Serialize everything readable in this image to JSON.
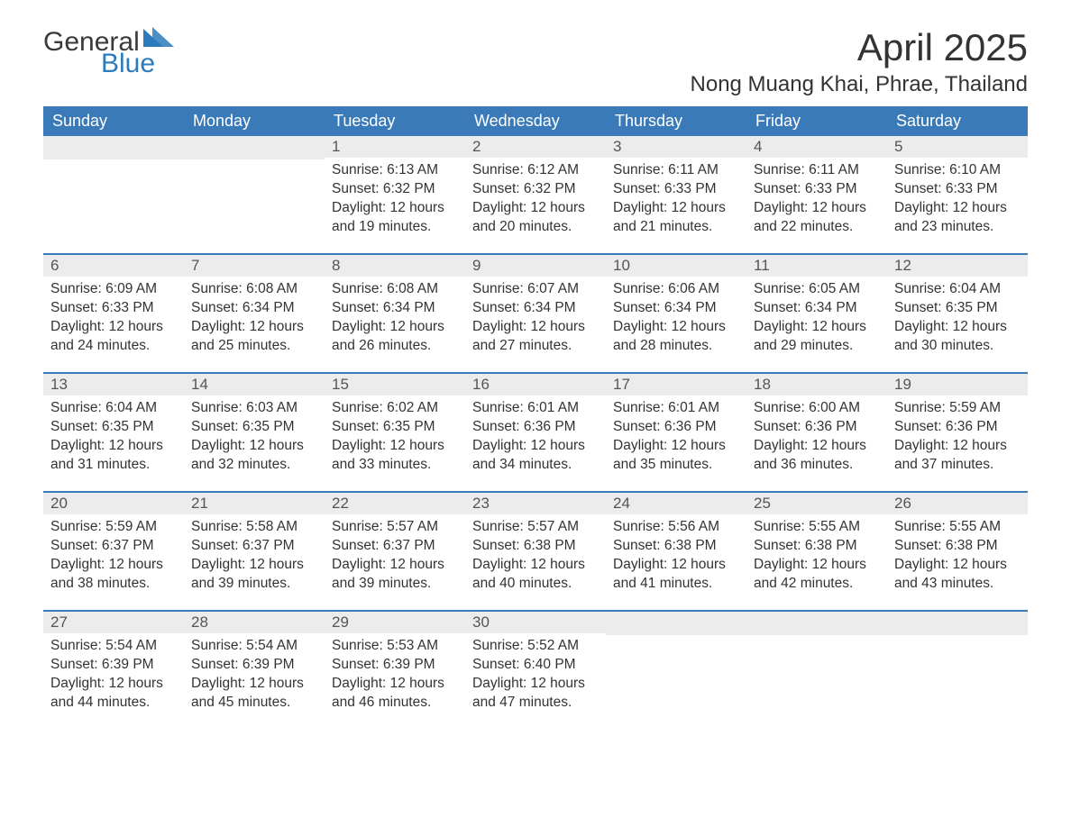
{
  "logo": {
    "text_general": "General",
    "text_blue": "Blue",
    "flag_color": "#2b7bbd"
  },
  "title": {
    "month": "April 2025",
    "location": "Nong Muang Khai, Phrae, Thailand"
  },
  "colors": {
    "header_bg": "#3a7ab8",
    "header_text": "#ffffff",
    "daynum_bg": "#ececec",
    "border": "#3a7ab8",
    "body_text": "#333333",
    "logo_general": "#3a3a3a",
    "logo_blue": "#2b7bbd"
  },
  "day_headers": [
    "Sunday",
    "Monday",
    "Tuesday",
    "Wednesday",
    "Thursday",
    "Friday",
    "Saturday"
  ],
  "weeks": [
    [
      {
        "n": "",
        "sunrise": "",
        "sunset": "",
        "daylight1": "",
        "daylight2": ""
      },
      {
        "n": "",
        "sunrise": "",
        "sunset": "",
        "daylight1": "",
        "daylight2": ""
      },
      {
        "n": "1",
        "sunrise": "Sunrise: 6:13 AM",
        "sunset": "Sunset: 6:32 PM",
        "daylight1": "Daylight: 12 hours",
        "daylight2": "and 19 minutes."
      },
      {
        "n": "2",
        "sunrise": "Sunrise: 6:12 AM",
        "sunset": "Sunset: 6:32 PM",
        "daylight1": "Daylight: 12 hours",
        "daylight2": "and 20 minutes."
      },
      {
        "n": "3",
        "sunrise": "Sunrise: 6:11 AM",
        "sunset": "Sunset: 6:33 PM",
        "daylight1": "Daylight: 12 hours",
        "daylight2": "and 21 minutes."
      },
      {
        "n": "4",
        "sunrise": "Sunrise: 6:11 AM",
        "sunset": "Sunset: 6:33 PM",
        "daylight1": "Daylight: 12 hours",
        "daylight2": "and 22 minutes."
      },
      {
        "n": "5",
        "sunrise": "Sunrise: 6:10 AM",
        "sunset": "Sunset: 6:33 PM",
        "daylight1": "Daylight: 12 hours",
        "daylight2": "and 23 minutes."
      }
    ],
    [
      {
        "n": "6",
        "sunrise": "Sunrise: 6:09 AM",
        "sunset": "Sunset: 6:33 PM",
        "daylight1": "Daylight: 12 hours",
        "daylight2": "and 24 minutes."
      },
      {
        "n": "7",
        "sunrise": "Sunrise: 6:08 AM",
        "sunset": "Sunset: 6:34 PM",
        "daylight1": "Daylight: 12 hours",
        "daylight2": "and 25 minutes."
      },
      {
        "n": "8",
        "sunrise": "Sunrise: 6:08 AM",
        "sunset": "Sunset: 6:34 PM",
        "daylight1": "Daylight: 12 hours",
        "daylight2": "and 26 minutes."
      },
      {
        "n": "9",
        "sunrise": "Sunrise: 6:07 AM",
        "sunset": "Sunset: 6:34 PM",
        "daylight1": "Daylight: 12 hours",
        "daylight2": "and 27 minutes."
      },
      {
        "n": "10",
        "sunrise": "Sunrise: 6:06 AM",
        "sunset": "Sunset: 6:34 PM",
        "daylight1": "Daylight: 12 hours",
        "daylight2": "and 28 minutes."
      },
      {
        "n": "11",
        "sunrise": "Sunrise: 6:05 AM",
        "sunset": "Sunset: 6:34 PM",
        "daylight1": "Daylight: 12 hours",
        "daylight2": "and 29 minutes."
      },
      {
        "n": "12",
        "sunrise": "Sunrise: 6:04 AM",
        "sunset": "Sunset: 6:35 PM",
        "daylight1": "Daylight: 12 hours",
        "daylight2": "and 30 minutes."
      }
    ],
    [
      {
        "n": "13",
        "sunrise": "Sunrise: 6:04 AM",
        "sunset": "Sunset: 6:35 PM",
        "daylight1": "Daylight: 12 hours",
        "daylight2": "and 31 minutes."
      },
      {
        "n": "14",
        "sunrise": "Sunrise: 6:03 AM",
        "sunset": "Sunset: 6:35 PM",
        "daylight1": "Daylight: 12 hours",
        "daylight2": "and 32 minutes."
      },
      {
        "n": "15",
        "sunrise": "Sunrise: 6:02 AM",
        "sunset": "Sunset: 6:35 PM",
        "daylight1": "Daylight: 12 hours",
        "daylight2": "and 33 minutes."
      },
      {
        "n": "16",
        "sunrise": "Sunrise: 6:01 AM",
        "sunset": "Sunset: 6:36 PM",
        "daylight1": "Daylight: 12 hours",
        "daylight2": "and 34 minutes."
      },
      {
        "n": "17",
        "sunrise": "Sunrise: 6:01 AM",
        "sunset": "Sunset: 6:36 PM",
        "daylight1": "Daylight: 12 hours",
        "daylight2": "and 35 minutes."
      },
      {
        "n": "18",
        "sunrise": "Sunrise: 6:00 AM",
        "sunset": "Sunset: 6:36 PM",
        "daylight1": "Daylight: 12 hours",
        "daylight2": "and 36 minutes."
      },
      {
        "n": "19",
        "sunrise": "Sunrise: 5:59 AM",
        "sunset": "Sunset: 6:36 PM",
        "daylight1": "Daylight: 12 hours",
        "daylight2": "and 37 minutes."
      }
    ],
    [
      {
        "n": "20",
        "sunrise": "Sunrise: 5:59 AM",
        "sunset": "Sunset: 6:37 PM",
        "daylight1": "Daylight: 12 hours",
        "daylight2": "and 38 minutes."
      },
      {
        "n": "21",
        "sunrise": "Sunrise: 5:58 AM",
        "sunset": "Sunset: 6:37 PM",
        "daylight1": "Daylight: 12 hours",
        "daylight2": "and 39 minutes."
      },
      {
        "n": "22",
        "sunrise": "Sunrise: 5:57 AM",
        "sunset": "Sunset: 6:37 PM",
        "daylight1": "Daylight: 12 hours",
        "daylight2": "and 39 minutes."
      },
      {
        "n": "23",
        "sunrise": "Sunrise: 5:57 AM",
        "sunset": "Sunset: 6:38 PM",
        "daylight1": "Daylight: 12 hours",
        "daylight2": "and 40 minutes."
      },
      {
        "n": "24",
        "sunrise": "Sunrise: 5:56 AM",
        "sunset": "Sunset: 6:38 PM",
        "daylight1": "Daylight: 12 hours",
        "daylight2": "and 41 minutes."
      },
      {
        "n": "25",
        "sunrise": "Sunrise: 5:55 AM",
        "sunset": "Sunset: 6:38 PM",
        "daylight1": "Daylight: 12 hours",
        "daylight2": "and 42 minutes."
      },
      {
        "n": "26",
        "sunrise": "Sunrise: 5:55 AM",
        "sunset": "Sunset: 6:38 PM",
        "daylight1": "Daylight: 12 hours",
        "daylight2": "and 43 minutes."
      }
    ],
    [
      {
        "n": "27",
        "sunrise": "Sunrise: 5:54 AM",
        "sunset": "Sunset: 6:39 PM",
        "daylight1": "Daylight: 12 hours",
        "daylight2": "and 44 minutes."
      },
      {
        "n": "28",
        "sunrise": "Sunrise: 5:54 AM",
        "sunset": "Sunset: 6:39 PM",
        "daylight1": "Daylight: 12 hours",
        "daylight2": "and 45 minutes."
      },
      {
        "n": "29",
        "sunrise": "Sunrise: 5:53 AM",
        "sunset": "Sunset: 6:39 PM",
        "daylight1": "Daylight: 12 hours",
        "daylight2": "and 46 minutes."
      },
      {
        "n": "30",
        "sunrise": "Sunrise: 5:52 AM",
        "sunset": "Sunset: 6:40 PM",
        "daylight1": "Daylight: 12 hours",
        "daylight2": "and 47 minutes."
      },
      {
        "n": "",
        "sunrise": "",
        "sunset": "",
        "daylight1": "",
        "daylight2": ""
      },
      {
        "n": "",
        "sunrise": "",
        "sunset": "",
        "daylight1": "",
        "daylight2": ""
      },
      {
        "n": "",
        "sunrise": "",
        "sunset": "",
        "daylight1": "",
        "daylight2": ""
      }
    ]
  ]
}
